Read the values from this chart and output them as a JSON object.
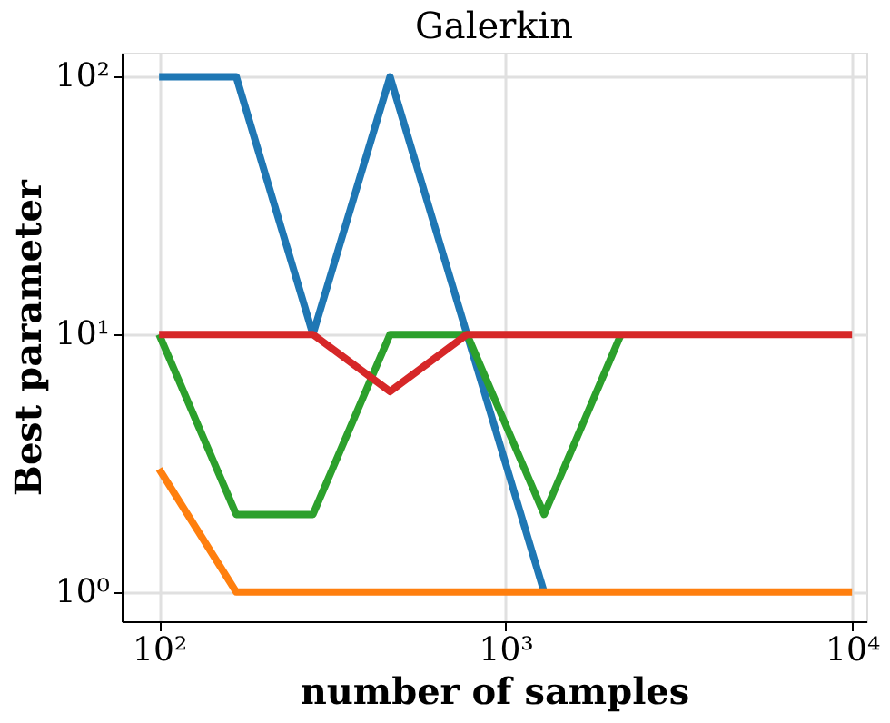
{
  "chart_data": {
    "type": "line",
    "title": "Galerkin",
    "xlabel": "number of samples",
    "ylabel": "Best parameter",
    "x": [
      100,
      167,
      278,
      464,
      774,
      1292,
      2154,
      3594,
      5995,
      10000
    ],
    "series": [
      {
        "color": "#1f77b4",
        "values": [
          100,
          100,
          10,
          100,
          10,
          1,
          null,
          null,
          null,
          null
        ]
      },
      {
        "color": "#ff7f0e",
        "values": [
          3,
          1,
          1,
          1,
          1,
          1,
          1,
          1,
          1,
          1
        ]
      },
      {
        "color": "#2ca02c",
        "values": [
          10,
          2,
          2,
          10,
          10,
          2,
          10,
          null,
          null,
          null
        ]
      },
      {
        "color": "#d62728",
        "values": [
          10,
          10,
          10,
          6,
          10,
          10,
          10,
          10,
          10,
          10
        ]
      }
    ],
    "log": "xy",
    "grid": true,
    "line_style": "solid",
    "marker": "none",
    "xlim": [
      78,
      11000
    ],
    "xticks": [
      {
        "value": 100,
        "label": "10²"
      },
      {
        "value": 1000,
        "label": "10³"
      },
      {
        "value": 10000,
        "label": "10⁴"
      }
    ],
    "ylim": [
      0.77,
      124
    ],
    "yticks": [
      {
        "value": 1,
        "label": "10⁰"
      },
      {
        "value": 10,
        "label": "10¹"
      },
      {
        "value": 100,
        "label": "10²"
      }
    ]
  }
}
